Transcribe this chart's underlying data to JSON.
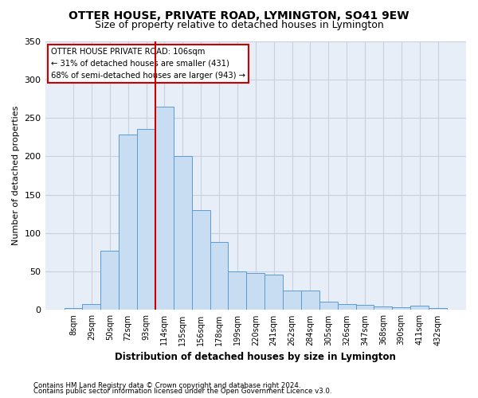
{
  "title": "OTTER HOUSE, PRIVATE ROAD, LYMINGTON, SO41 9EW",
  "subtitle": "Size of property relative to detached houses in Lymington",
  "xlabel": "Distribution of detached houses by size in Lymington",
  "ylabel": "Number of detached properties",
  "categories": [
    "8sqm",
    "29sqm",
    "50sqm",
    "72sqm",
    "93sqm",
    "114sqm",
    "135sqm",
    "156sqm",
    "178sqm",
    "199sqm",
    "220sqm",
    "241sqm",
    "262sqm",
    "284sqm",
    "305sqm",
    "326sqm",
    "347sqm",
    "368sqm",
    "390sqm",
    "411sqm",
    "432sqm"
  ],
  "values": [
    2,
    8,
    77,
    228,
    236,
    265,
    200,
    130,
    88,
    50,
    48,
    46,
    25,
    25,
    11,
    8,
    7,
    5,
    4,
    6,
    3
  ],
  "bar_color": "#c9ddf2",
  "bar_edge_color": "#5b9bd5",
  "vline_x": 4.5,
  "annotation_line1": "OTTER HOUSE PRIVATE ROAD: 106sqm",
  "annotation_line2": "← 31% of detached houses are smaller (431)",
  "annotation_line3": "68% of semi-detached houses are larger (943) →",
  "annotation_box_color": "#ffffff",
  "annotation_box_edge": "#cc0000",
  "vline_color": "#cc0000",
  "ylim": [
    0,
    350
  ],
  "yticks": [
    0,
    50,
    100,
    150,
    200,
    250,
    300,
    350
  ],
  "grid_color": "#c8d0de",
  "bg_color": "#e8eef8",
  "footer1": "Contains HM Land Registry data © Crown copyright and database right 2024.",
  "footer2": "Contains public sector information licensed under the Open Government Licence v3.0.",
  "title_fontsize": 10,
  "subtitle_fontsize": 9
}
